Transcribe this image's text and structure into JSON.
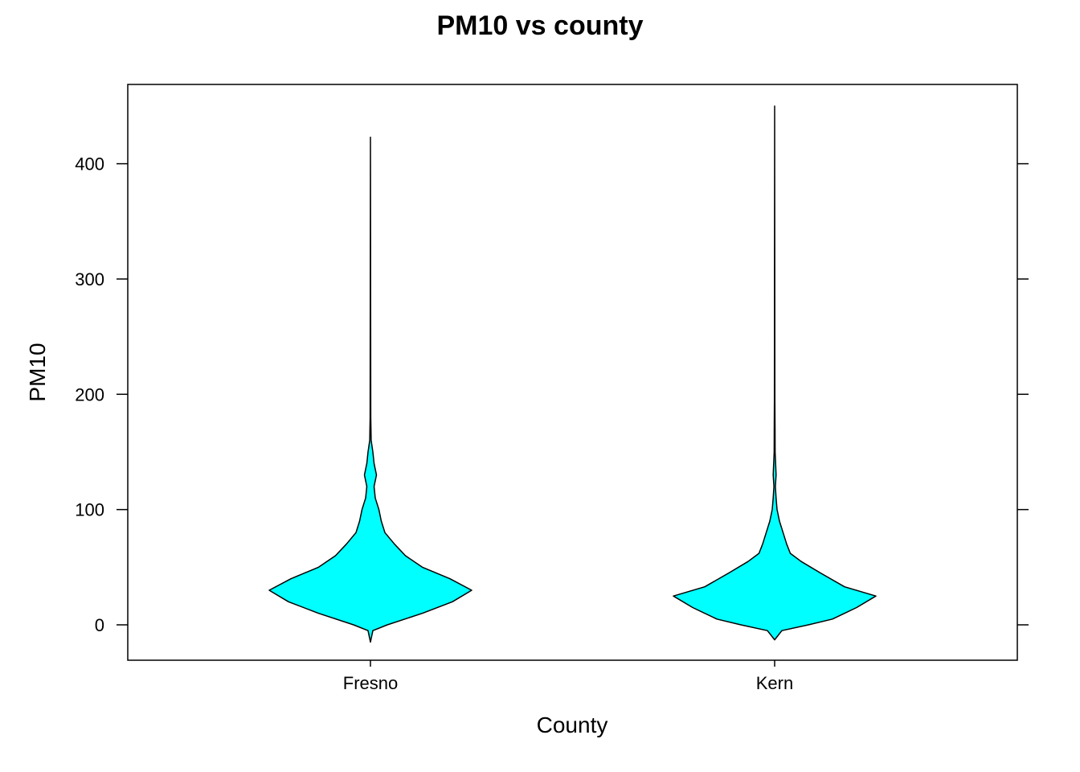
{
  "chart_data": {
    "type": "violin",
    "title": "PM10 vs county",
    "xlabel": "County",
    "ylabel": "PM10",
    "categories": [
      "Fresno",
      "Kern"
    ],
    "ylim": [
      -30,
      460
    ],
    "yticks": [
      0,
      100,
      200,
      300,
      400
    ],
    "fill_color": "#00FFFF",
    "outline_color": "#000000",
    "grid": false,
    "series": [
      {
        "category": "Fresno",
        "min": -15,
        "max": 423,
        "density": [
          [
            -15,
            0.0
          ],
          [
            -5,
            0.02
          ],
          [
            0,
            0.14
          ],
          [
            10,
            0.43
          ],
          [
            20,
            0.68
          ],
          [
            30,
            0.84
          ],
          [
            40,
            0.66
          ],
          [
            50,
            0.43
          ],
          [
            60,
            0.29
          ],
          [
            70,
            0.2
          ],
          [
            80,
            0.12
          ],
          [
            90,
            0.09
          ],
          [
            100,
            0.07
          ],
          [
            110,
            0.04
          ],
          [
            120,
            0.03
          ],
          [
            130,
            0.05
          ],
          [
            140,
            0.03
          ],
          [
            150,
            0.02
          ],
          [
            160,
            0.006
          ],
          [
            180,
            0.003
          ],
          [
            250,
            0.002
          ],
          [
            423,
            0.0
          ]
        ]
      },
      {
        "category": "Kern",
        "min": -13,
        "max": 450,
        "density": [
          [
            -13,
            0.0
          ],
          [
            -5,
            0.06
          ],
          [
            0,
            0.28
          ],
          [
            5,
            0.48
          ],
          [
            15,
            0.68
          ],
          [
            25,
            0.84
          ],
          [
            33,
            0.58
          ],
          [
            45,
            0.38
          ],
          [
            55,
            0.22
          ],
          [
            62,
            0.13
          ],
          [
            70,
            0.1
          ],
          [
            80,
            0.07
          ],
          [
            90,
            0.04
          ],
          [
            100,
            0.02
          ],
          [
            110,
            0.012
          ],
          [
            120,
            0.006
          ],
          [
            130,
            0.012
          ],
          [
            140,
            0.008
          ],
          [
            150,
            0.004
          ],
          [
            170,
            0.003
          ],
          [
            195,
            0.002
          ],
          [
            450,
            0.0
          ]
        ]
      }
    ]
  }
}
